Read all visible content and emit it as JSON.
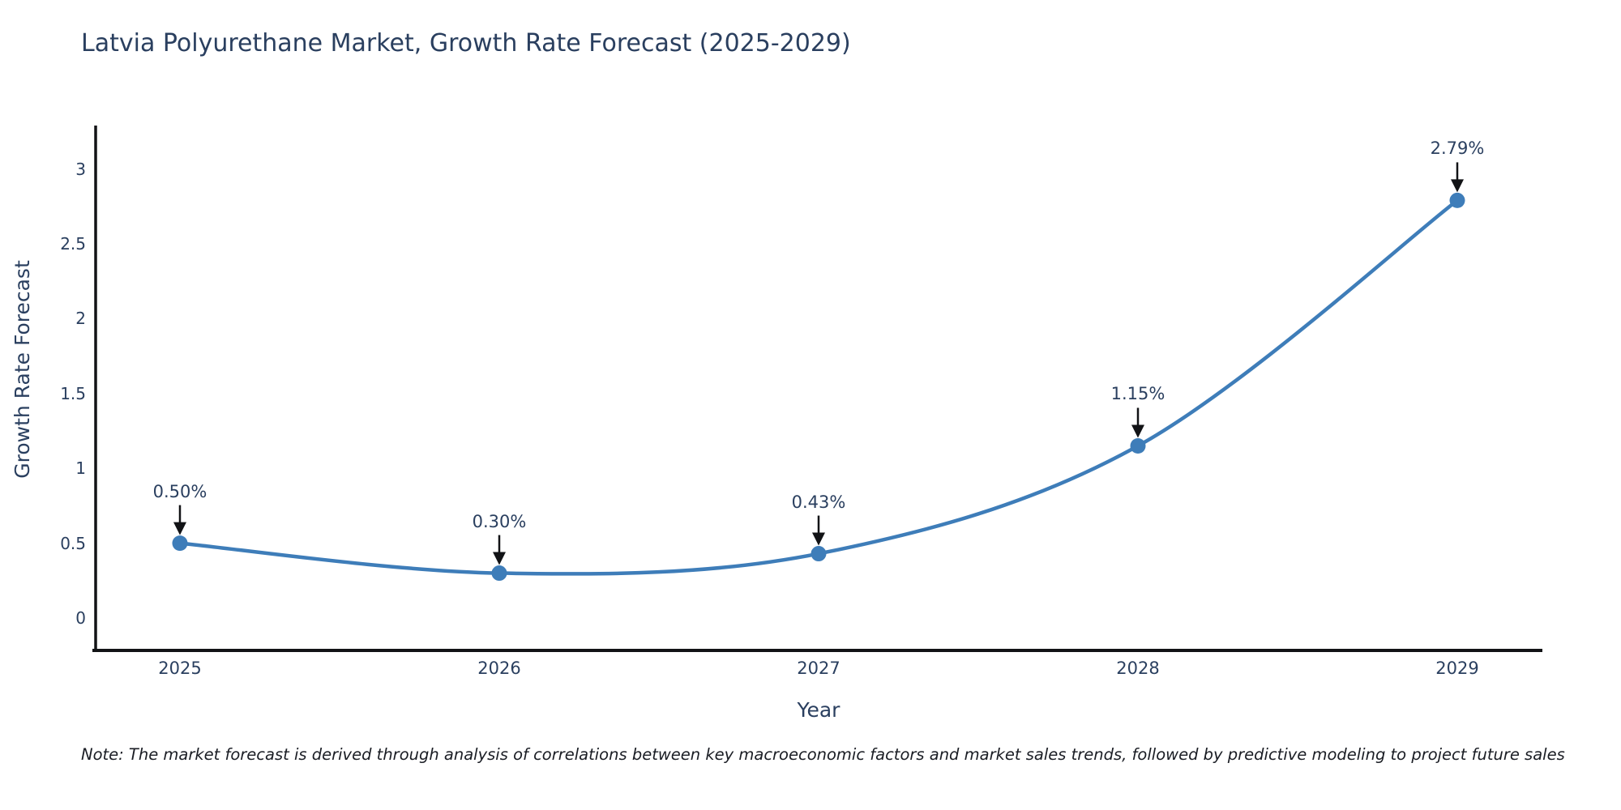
{
  "title": "Latvia Polyurethane Market, Growth Rate Forecast (2025-2029)",
  "note": "Note: The market forecast is derived through analysis of correlations between key macroeconomic factors and market sales trends, followed by predictive modeling to project future sales",
  "colors": {
    "line": "#3e7db9",
    "marker": "#3e7db9",
    "axis": "#121316",
    "text": "#2a3f5f",
    "annotation_arrow": "#121316"
  },
  "chart_data": {
    "type": "line",
    "title": "Latvia Polyurethane Market, Growth Rate Forecast (2025-2029)",
    "x": [
      2025,
      2026,
      2027,
      2028,
      2029
    ],
    "values": [
      0.5,
      0.3,
      0.43,
      1.15,
      2.79
    ],
    "point_labels": [
      "0.50%",
      "0.30%",
      "0.43%",
      "1.15%",
      "2.79%"
    ],
    "xlabel": "Year",
    "ylabel": "Growth Rate Forecast",
    "xtick_labels": [
      "2025",
      "2026",
      "2027",
      "2028",
      "2029"
    ],
    "yticks": [
      0,
      0.5,
      1,
      1.5,
      2,
      2.5,
      3
    ],
    "ytick_labels": [
      "0",
      "0.5",
      "1",
      "1.5",
      "2",
      "2.5",
      "3"
    ],
    "ylim": [
      -0.2,
      3.3
    ],
    "line_shape": "spline",
    "grid": false,
    "legend": "none",
    "annotations": "each point labeled with percentage and downward black arrow"
  }
}
